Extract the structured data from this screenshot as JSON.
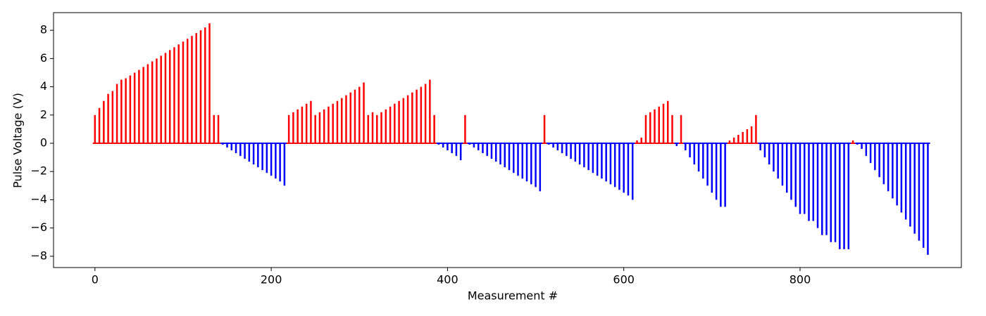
{
  "chart_data": {
    "type": "stem",
    "x_label": "Measurement #",
    "y_label": "Pulse Voltage (V)",
    "positive_color": "#ff0000",
    "negative_color": "#0000ff",
    "xlim": [
      -47,
      983
    ],
    "ylim": [
      -8.8,
      9.25
    ],
    "xticks": [
      0,
      200,
      400,
      600,
      800
    ],
    "yticks": [
      {
        "value": -8,
        "label": "−8"
      },
      {
        "value": -6,
        "label": "−6"
      },
      {
        "value": -4,
        "label": "−4"
      },
      {
        "value": -2,
        "label": "−2"
      },
      0,
      2,
      4,
      6,
      8
    ],
    "x": [
      0,
      5,
      10,
      15,
      20,
      25,
      30,
      35,
      40,
      45,
      50,
      55,
      60,
      65,
      70,
      75,
      80,
      85,
      90,
      95,
      100,
      105,
      110,
      115,
      120,
      125,
      130,
      135,
      140,
      145,
      150,
      155,
      160,
      165,
      170,
      175,
      180,
      185,
      190,
      195,
      200,
      205,
      210,
      215,
      220,
      225,
      230,
      235,
      240,
      245,
      250,
      255,
      260,
      265,
      270,
      275,
      280,
      285,
      290,
      295,
      300,
      305,
      310,
      315,
      320,
      325,
      330,
      335,
      340,
      345,
      350,
      355,
      360,
      365,
      370,
      375,
      380,
      385,
      390,
      395,
      400,
      405,
      410,
      415,
      420,
      425,
      430,
      435,
      440,
      445,
      450,
      455,
      460,
      465,
      470,
      475,
      480,
      485,
      490,
      495,
      500,
      505,
      510,
      515,
      520,
      525,
      530,
      535,
      540,
      545,
      550,
      555,
      560,
      565,
      570,
      575,
      580,
      585,
      590,
      595,
      600,
      605,
      610,
      615,
      620,
      625,
      630,
      635,
      640,
      645,
      650,
      655,
      660,
      665,
      670,
      675,
      680,
      685,
      690,
      695,
      700,
      705,
      710,
      715,
      720,
      725,
      730,
      735,
      740,
      745,
      750,
      755,
      760,
      765,
      770,
      775,
      780,
      785,
      790,
      795,
      800,
      805,
      810,
      815,
      820,
      825,
      830,
      835,
      840,
      845,
      850,
      855,
      860,
      865,
      870,
      875,
      880,
      885,
      890,
      895,
      900,
      905,
      910,
      915,
      920,
      925,
      930,
      935,
      940,
      945
    ],
    "values": [
      2,
      2.5,
      3,
      3.5,
      3.7,
      4.2,
      4.5,
      4.6,
      4.8,
      5,
      5.2,
      5.4,
      5.6,
      5.8,
      6,
      6.2,
      6.4,
      6.6,
      6.8,
      7,
      7.2,
      7.4,
      7.6,
      7.8,
      8,
      8.2,
      8.5,
      2,
      2,
      -0.1,
      -0.3,
      -0.5,
      -0.7,
      -0.9,
      -1.1,
      -1.3,
      -1.5,
      -1.7,
      -1.9,
      -2.1,
      -2.3,
      -2.5,
      -2.7,
      -3,
      2,
      2.2,
      2.4,
      2.6,
      2.8,
      3,
      2,
      2.2,
      2.4,
      2.6,
      2.8,
      3,
      3.2,
      3.4,
      3.6,
      3.8,
      4,
      4.3,
      2,
      2.2,
      2,
      2.2,
      2.4,
      2.6,
      2.8,
      3,
      3.2,
      3.4,
      3.6,
      3.8,
      4,
      4.2,
      4.5,
      2,
      -0.1,
      -0.3,
      -0.5,
      -0.7,
      -0.9,
      -1.2,
      2,
      -0.1,
      -0.3,
      -0.5,
      -0.7,
      -0.9,
      -1.1,
      -1.3,
      -1.5,
      -1.7,
      -1.9,
      -2.1,
      -2.3,
      -2.5,
      -2.7,
      -2.9,
      -3.1,
      -3.4,
      2,
      -0.1,
      -0.3,
      -0.5,
      -0.7,
      -0.9,
      -1.1,
      -1.3,
      -1.5,
      -1.7,
      -1.9,
      -2.1,
      -2.3,
      -2.5,
      -2.7,
      -2.9,
      -3.1,
      -3.3,
      -3.5,
      -3.7,
      -4,
      0.2,
      0.4,
      2,
      2.2,
      2.4,
      2.6,
      2.8,
      3,
      2,
      -0.2,
      2,
      -0.5,
      -1,
      -1.5,
      -2,
      -2.5,
      -3,
      -3.5,
      -4,
      -4.5,
      -4.5,
      0.2,
      0.4,
      0.6,
      0.8,
      1,
      1.2,
      2,
      -0.5,
      -1,
      -1.5,
      -2,
      -2.5,
      -3,
      -3.5,
      -4,
      -4.5,
      -5,
      -5,
      -5.5,
      -5.5,
      -6,
      -6.5,
      -6.5,
      -7,
      -7,
      -7.5,
      -7.5,
      -7.5,
      0.2,
      -0.1,
      -0.4,
      -0.9,
      -1.4,
      -1.9,
      -2.4,
      -2.9,
      -3.4,
      -3.9,
      -4.4,
      -4.9,
      -5.4,
      -5.9,
      -6.4,
      -6.9,
      -7.4,
      -7.9
    ]
  }
}
